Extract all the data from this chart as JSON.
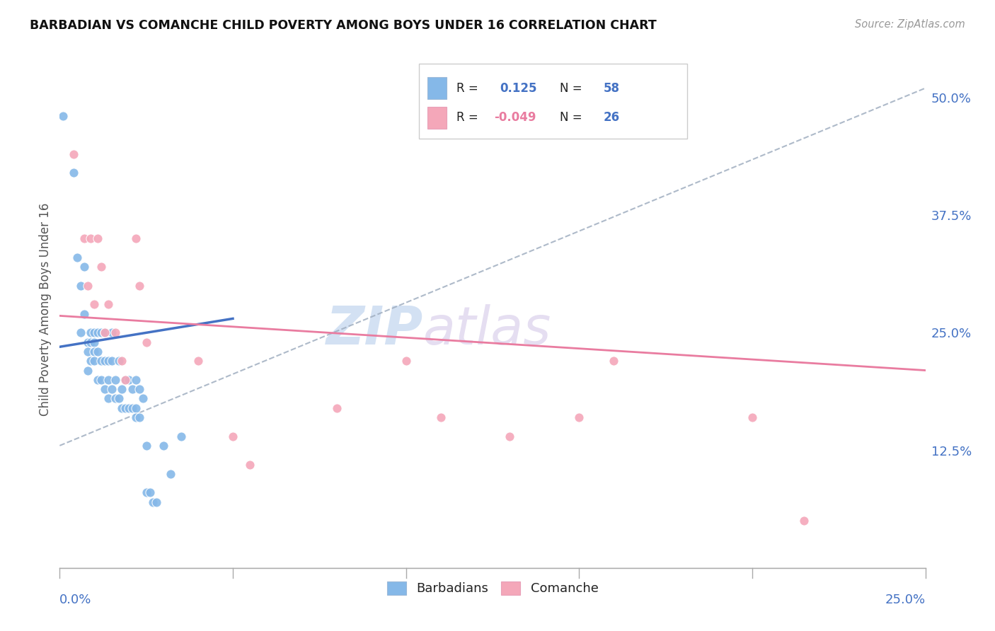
{
  "title": "BARBADIAN VS COMANCHE CHILD POVERTY AMONG BOYS UNDER 16 CORRELATION CHART",
  "source": "Source: ZipAtlas.com",
  "ylabel": "Child Poverty Among Boys Under 16",
  "xmin": 0.0,
  "xmax": 0.25,
  "ymin": 0.0,
  "ymax": 0.55,
  "barbadian_R": 0.125,
  "barbadian_N": 58,
  "comanche_R": -0.049,
  "comanche_N": 26,
  "barbadian_color": "#85b8e8",
  "comanche_color": "#f4a7b9",
  "trend_blue_color": "#4472c4",
  "trend_pink_color": "#e97ca0",
  "dash_color": "#a0aec0",
  "watermark_zip": "ZIP",
  "watermark_atlas": "atlas",
  "background_color": "#ffffff",
  "grid_color": "#c8d4e0",
  "barbadian_x": [
    0.001,
    0.004,
    0.005,
    0.006,
    0.006,
    0.007,
    0.007,
    0.008,
    0.008,
    0.008,
    0.009,
    0.009,
    0.009,
    0.01,
    0.01,
    0.01,
    0.01,
    0.011,
    0.011,
    0.011,
    0.012,
    0.012,
    0.012,
    0.013,
    0.013,
    0.013,
    0.014,
    0.014,
    0.014,
    0.015,
    0.015,
    0.015,
    0.016,
    0.016,
    0.017,
    0.017,
    0.018,
    0.018,
    0.019,
    0.019,
    0.02,
    0.02,
    0.021,
    0.021,
    0.022,
    0.022,
    0.022,
    0.023,
    0.023,
    0.024,
    0.025,
    0.025,
    0.026,
    0.027,
    0.028,
    0.03,
    0.032,
    0.035
  ],
  "barbadian_y": [
    0.48,
    0.42,
    0.33,
    0.3,
    0.25,
    0.32,
    0.27,
    0.24,
    0.23,
    0.21,
    0.25,
    0.24,
    0.22,
    0.25,
    0.24,
    0.23,
    0.22,
    0.25,
    0.23,
    0.2,
    0.25,
    0.22,
    0.2,
    0.25,
    0.22,
    0.19,
    0.22,
    0.2,
    0.18,
    0.25,
    0.22,
    0.19,
    0.2,
    0.18,
    0.22,
    0.18,
    0.19,
    0.17,
    0.2,
    0.17,
    0.2,
    0.17,
    0.19,
    0.17,
    0.2,
    0.17,
    0.16,
    0.19,
    0.16,
    0.18,
    0.13,
    0.08,
    0.08,
    0.07,
    0.07,
    0.13,
    0.1,
    0.14
  ],
  "comanche_x": [
    0.004,
    0.007,
    0.008,
    0.009,
    0.01,
    0.011,
    0.012,
    0.013,
    0.014,
    0.016,
    0.018,
    0.019,
    0.022,
    0.023,
    0.025,
    0.04,
    0.05,
    0.055,
    0.08,
    0.1,
    0.11,
    0.13,
    0.15,
    0.16,
    0.2,
    0.215
  ],
  "comanche_y": [
    0.44,
    0.35,
    0.3,
    0.35,
    0.28,
    0.35,
    0.32,
    0.25,
    0.28,
    0.25,
    0.22,
    0.2,
    0.35,
    0.3,
    0.24,
    0.22,
    0.14,
    0.11,
    0.17,
    0.22,
    0.16,
    0.14,
    0.16,
    0.22,
    0.16,
    0.05
  ],
  "blue_trend_x": [
    0.0,
    0.05
  ],
  "blue_trend_y": [
    0.235,
    0.265
  ],
  "pink_trend_x": [
    0.0,
    0.25
  ],
  "pink_trend_y": [
    0.268,
    0.21
  ],
  "dash_trend_x": [
    0.0,
    0.25
  ],
  "dash_trend_y": [
    0.13,
    0.51
  ]
}
